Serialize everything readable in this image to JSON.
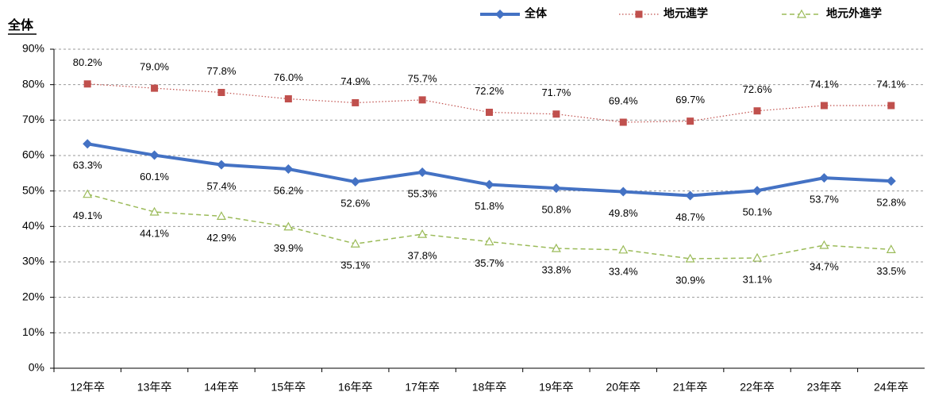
{
  "chart_data": {
    "type": "line",
    "title": "全体",
    "categories": [
      "12年卒",
      "13年卒",
      "14年卒",
      "15年卒",
      "16年卒",
      "17年卒",
      "18年卒",
      "19年卒",
      "20年卒",
      "21年卒",
      "22年卒",
      "23年卒",
      "24年卒"
    ],
    "series": [
      {
        "name": "全体",
        "color": "#4472c4",
        "marker": "diamond",
        "dash": "solid",
        "values": [
          63.3,
          60.1,
          57.4,
          56.2,
          52.6,
          55.3,
          51.8,
          50.8,
          49.8,
          48.7,
          50.1,
          53.7,
          52.8
        ],
        "value_labels": [
          "63.3%",
          "60.1%",
          "57.4%",
          "56.2%",
          "52.6%",
          "55.3%",
          "51.8%",
          "50.8%",
          "49.8%",
          "48.7%",
          "50.1%",
          "53.7%",
          "52.8%"
        ]
      },
      {
        "name": "地元進学",
        "color": "#c0504d",
        "marker": "square",
        "dash": "dotted",
        "values": [
          80.2,
          79.0,
          77.8,
          76.0,
          74.9,
          75.7,
          72.2,
          71.7,
          69.4,
          69.7,
          72.6,
          74.1,
          74.1
        ],
        "value_labels": [
          "80.2%",
          "79.0%",
          "77.8%",
          "76.0%",
          "74.9%",
          "75.7%",
          "72.2%",
          "71.7%",
          "69.4%",
          "69.7%",
          "72.6%",
          "74.1%",
          "74.1%"
        ]
      },
      {
        "name": "地元外進学",
        "color": "#9bbb59",
        "marker": "triangle",
        "dash": "dashed",
        "values": [
          49.1,
          44.1,
          42.9,
          39.9,
          35.1,
          37.8,
          35.7,
          33.8,
          33.4,
          30.9,
          31.1,
          34.7,
          33.5
        ],
        "value_labels": [
          "49.1%",
          "44.1%",
          "42.9%",
          "39.9%",
          "35.1%",
          "37.8%",
          "35.7%",
          "33.8%",
          "33.4%",
          "30.9%",
          "31.1%",
          "34.7%",
          "33.5%"
        ]
      }
    ],
    "ylim": [
      0,
      90
    ],
    "yticks": [
      {
        "value": 0,
        "label": "0%"
      },
      {
        "value": 10,
        "label": "10%"
      },
      {
        "value": 20,
        "label": "20%"
      },
      {
        "value": 30,
        "label": "30%"
      },
      {
        "value": 40,
        "label": "40%"
      },
      {
        "value": 50,
        "label": "50%"
      },
      {
        "value": 60,
        "label": "60%"
      },
      {
        "value": 70,
        "label": "70%"
      },
      {
        "value": 80,
        "label": "80%"
      },
      {
        "value": 90,
        "label": "90%"
      }
    ],
    "grid": true
  }
}
